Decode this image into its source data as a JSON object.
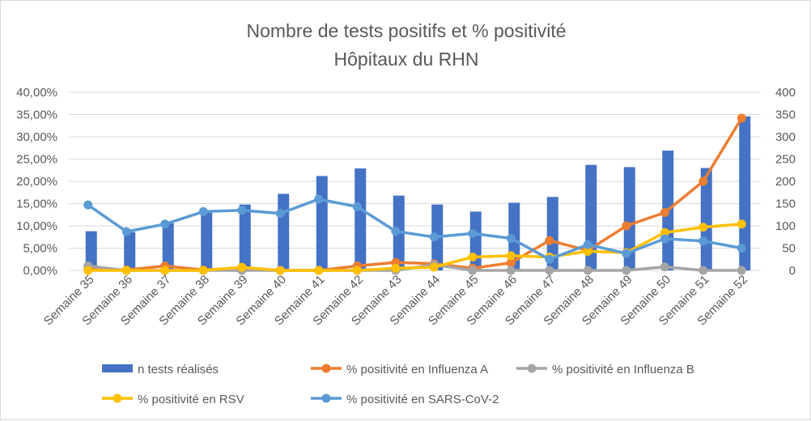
{
  "chart_data": {
    "type": "bar+line",
    "title": [
      "Nombre de tests positifs et % positivité",
      "Hôpitaux du RHN"
    ],
    "categories": [
      "Semaine 35",
      "Semaine 36",
      "Semaine 37",
      "Semaine 38",
      "Semaine 39",
      "Semaine 40",
      "Semaine 41",
      "Semaine 42",
      "Semaine 43",
      "Semaine 44",
      "Semaine 45",
      "Semaine 46",
      "Semaine 47",
      "Semaine 48",
      "Semaine 49",
      "Semaine 50",
      "Semaine 51",
      "Semaine 52"
    ],
    "y_left": {
      "ylim": [
        0,
        0.4
      ],
      "ticks": [
        "0,00%",
        "5,00%",
        "10,00%",
        "15,00%",
        "20,00%",
        "25,00%",
        "30,00%",
        "35,00%",
        "40,00%"
      ]
    },
    "y_right": {
      "ylim": [
        0,
        400
      ],
      "ticks": [
        "0",
        "50",
        "100",
        "150",
        "200",
        "250",
        "300",
        "350",
        "400"
      ]
    },
    "grid": true,
    "legend_position": "bottom",
    "bars": {
      "name": "n tests réalisés",
      "axis": "right",
      "color": "#4472c4",
      "values": [
        88,
        86,
        106,
        134,
        148,
        172,
        212,
        229,
        168,
        148,
        132,
        152,
        165,
        237,
        232,
        269,
        230,
        346
      ]
    },
    "series": [
      {
        "name": "% positivité en Influenza A",
        "axis": "left",
        "color": "#ed7d31",
        "values": [
          0.005,
          0.001,
          0.01,
          0.001,
          0.005,
          0.0,
          0.0,
          0.01,
          0.018,
          0.015,
          0.005,
          0.017,
          0.067,
          0.045,
          0.1,
          0.13,
          0.2,
          0.342
        ]
      },
      {
        "name": "% positivité en Influenza B",
        "axis": "left",
        "color": "#a5a5a5",
        "values": [
          0.01,
          0.0,
          0.0,
          0.0,
          0.0,
          0.0,
          0.0,
          0.0,
          0.0,
          0.013,
          0.0,
          0.0,
          0.0,
          0.0,
          0.0,
          0.008,
          0.0,
          0.0
        ]
      },
      {
        "name": "% positivité en RSV",
        "axis": "left",
        "color": "#ffc000",
        "values": [
          0.0,
          0.0,
          0.0,
          0.0,
          0.007,
          0.0,
          0.0,
          0.0,
          0.005,
          0.007,
          0.03,
          0.033,
          0.03,
          0.043,
          0.04,
          0.085,
          0.097,
          0.104
        ]
      },
      {
        "name": "% positivité en SARS-CoV-2",
        "axis": "left",
        "color": "#5b9bd5",
        "values": [
          0.147,
          0.087,
          0.104,
          0.132,
          0.135,
          0.128,
          0.16,
          0.143,
          0.088,
          0.075,
          0.083,
          0.072,
          0.025,
          0.058,
          0.038,
          0.071,
          0.066,
          0.05
        ]
      }
    ]
  }
}
